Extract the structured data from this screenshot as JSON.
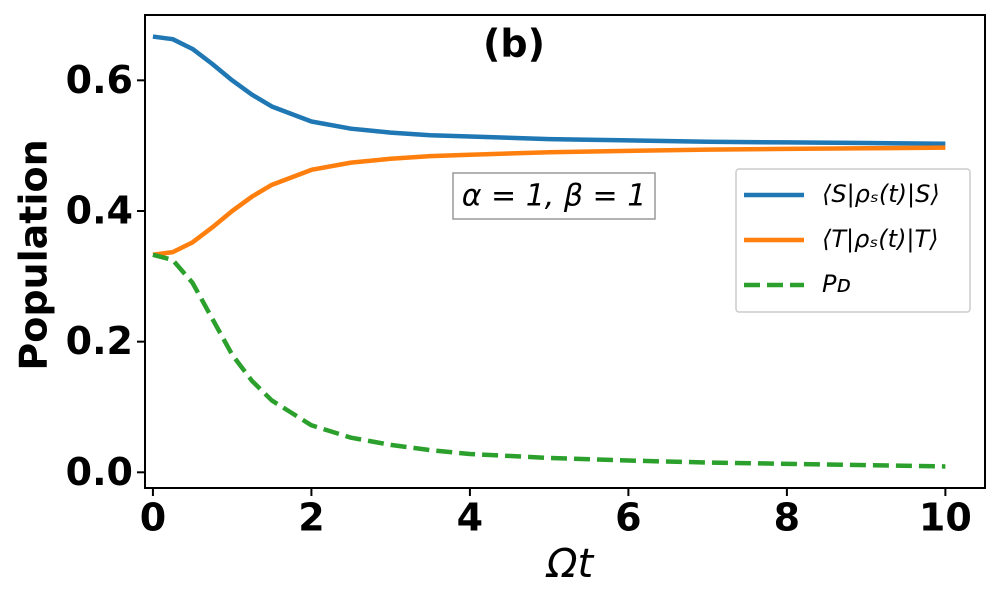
{
  "chart_data": {
    "type": "line",
    "title": "(b)",
    "x_label": "Ωt",
    "y_label": "Population",
    "annotation": "α = 1, β = 1",
    "x": [
      0,
      0.25,
      0.5,
      0.75,
      1,
      1.25,
      1.5,
      2,
      2.5,
      3,
      3.5,
      4,
      5,
      6,
      7,
      8,
      9,
      10
    ],
    "series": [
      {
        "name": "⟨S|ρₛ(t)|S⟩",
        "color": "#1f77b4",
        "style": "solid",
        "values": [
          0.667,
          0.663,
          0.648,
          0.625,
          0.6,
          0.578,
          0.56,
          0.537,
          0.526,
          0.52,
          0.516,
          0.514,
          0.51,
          0.508,
          0.506,
          0.505,
          0.504,
          0.503
        ]
      },
      {
        "name": "⟨T|ρₛ(t)|T⟩",
        "color": "#ff7f0e",
        "style": "solid",
        "values": [
          0.333,
          0.337,
          0.352,
          0.375,
          0.4,
          0.422,
          0.44,
          0.463,
          0.474,
          0.48,
          0.484,
          0.486,
          0.49,
          0.492,
          0.494,
          0.495,
          0.496,
          0.497
        ]
      },
      {
        "name": "Pᴅ",
        "color": "#2ca02c",
        "style": "dashed",
        "values": [
          0.333,
          0.325,
          0.29,
          0.235,
          0.18,
          0.14,
          0.11,
          0.072,
          0.053,
          0.042,
          0.034,
          0.028,
          0.022,
          0.018,
          0.015,
          0.013,
          0.011,
          0.009
        ]
      }
    ],
    "xlim": [
      -0.1,
      10.5
    ],
    "ylim": [
      -0.024,
      0.7
    ],
    "xticks": [
      0,
      2,
      4,
      6,
      8,
      10
    ],
    "yticks": [
      {
        "value": 0,
        "label": "0.0"
      },
      {
        "value": 0.2,
        "label": "0.2"
      },
      {
        "value": 0.4,
        "label": "0.4"
      },
      {
        "value": 0.6,
        "label": "0.6"
      }
    ],
    "grid": false,
    "legend_position": "center right"
  }
}
